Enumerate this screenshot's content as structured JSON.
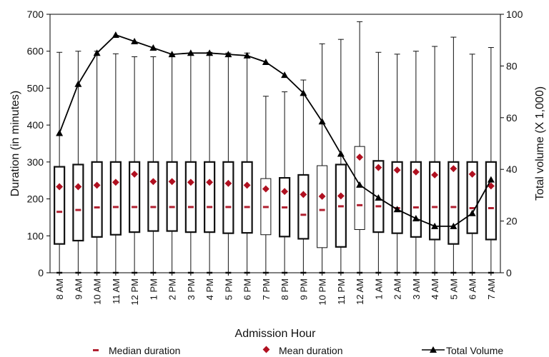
{
  "chart_data": {
    "type": "boxplot-with-line",
    "xlabel": "Admission Hour",
    "ylabel_left": "Duration (in minutes)",
    "ylabel_right": "Total volume (X 1,000)",
    "ylim_left": [
      0,
      700
    ],
    "ylim_right": [
      0,
      100
    ],
    "yticks_left": [
      0,
      100,
      200,
      300,
      400,
      500,
      600,
      700
    ],
    "yticks_right": [
      0,
      20,
      40,
      60,
      80,
      100
    ],
    "grid": false,
    "legend_position": "bottom",
    "legend": {
      "median": "Median duration",
      "mean": "Mean duration",
      "volume": "Total Volume"
    },
    "colors": {
      "box": "#111111",
      "median": "#b02030",
      "mean": "#b01020",
      "volume": "#000000"
    },
    "categories": [
      "8 AM",
      "9 AM",
      "10 AM",
      "11 AM",
      "12 PM",
      "1 PM",
      "2 PM",
      "3 PM",
      "4 PM",
      "5 PM",
      "6 PM",
      "7 PM",
      "8 PM",
      "9 PM",
      "10 PM",
      "11 PM",
      "12 AM",
      "1 AM",
      "2 AM",
      "3 AM",
      "4 AM",
      "5 AM",
      "6 AM",
      "7 AM"
    ],
    "whisker_low": [
      0,
      0,
      0,
      0,
      0,
      0,
      0,
      0,
      0,
      0,
      0,
      0,
      0,
      0,
      0,
      0,
      0,
      0,
      0,
      0,
      0,
      0,
      0,
      0
    ],
    "q1": [
      78,
      87,
      97,
      103,
      110,
      113,
      113,
      110,
      110,
      107,
      108,
      103,
      98,
      92,
      68,
      70,
      117,
      110,
      107,
      97,
      90,
      78,
      107,
      90
    ],
    "median": [
      165,
      170,
      177,
      178,
      178,
      178,
      178,
      178,
      178,
      178,
      178,
      178,
      177,
      157,
      170,
      180,
      183,
      180,
      175,
      177,
      178,
      178,
      175,
      175
    ],
    "q3": [
      287,
      293,
      300,
      300,
      300,
      300,
      300,
      300,
      300,
      300,
      300,
      255,
      257,
      265,
      290,
      293,
      342,
      303,
      300,
      300,
      300,
      300,
      300,
      300
    ],
    "whisker_high": [
      597,
      600,
      600,
      593,
      585,
      585,
      590,
      595,
      597,
      595,
      595,
      478,
      490,
      522,
      620,
      632,
      680,
      597,
      592,
      600,
      613,
      638,
      592,
      610
    ],
    "mean": [
      233,
      233,
      237,
      245,
      267,
      247,
      247,
      245,
      245,
      242,
      237,
      227,
      220,
      212,
      207,
      208,
      313,
      285,
      278,
      273,
      265,
      282,
      267,
      235
    ],
    "volume": [
      54,
      73,
      85,
      92,
      89.5,
      87,
      84.5,
      85,
      85,
      84.5,
      84,
      81.5,
      76.5,
      69.5,
      58.5,
      46,
      34,
      29,
      24.5,
      21,
      18,
      18,
      23,
      36
    ]
  }
}
